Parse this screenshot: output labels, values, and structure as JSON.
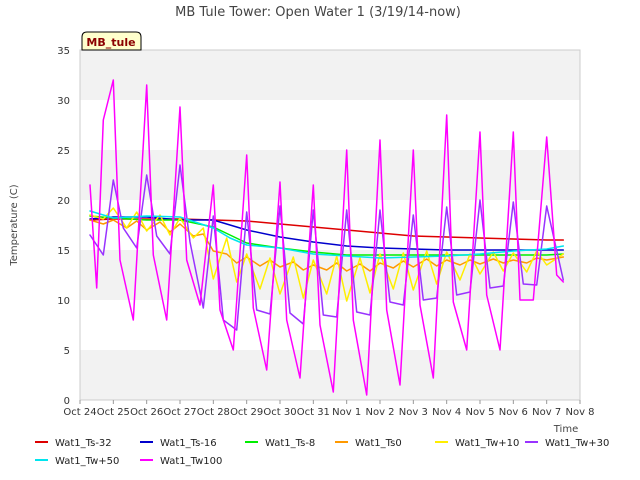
{
  "chart_data": {
    "type": "line",
    "title": "MB Tule Tower: Open Water 1 (3/19/14-now)",
    "site_tag": "MB_tule",
    "xlabel": "Time",
    "ylabel": "Temperature (C)",
    "ylim": [
      0,
      35
    ],
    "yticks": [
      "0",
      "5",
      "10",
      "15",
      "20",
      "25",
      "30",
      "35"
    ],
    "xlim": [
      0,
      15
    ],
    "xticks": [
      "Oct 24",
      "Oct 25",
      "Oct 26",
      "Oct 27",
      "Oct 28",
      "Oct 29",
      "Oct 30",
      "Oct 31",
      "Nov 1",
      "Nov 2",
      "Nov 3",
      "Nov 4",
      "Nov 5",
      "Nov 6",
      "Nov 7",
      "Nov 8"
    ],
    "grid": "horizontal bands",
    "legend_position": "bottom",
    "series": [
      {
        "name": "Wat1_Ts-32",
        "color": "#dd0000",
        "x": [
          0.3,
          1,
          2,
          3,
          4,
          5,
          6,
          7,
          8,
          9,
          10,
          11,
          12,
          13,
          14,
          14.5
        ],
        "y": [
          18.0,
          18.1,
          18.1,
          18.1,
          18.0,
          17.9,
          17.6,
          17.3,
          17.0,
          16.7,
          16.4,
          16.3,
          16.2,
          16.1,
          16.0,
          16.0
        ]
      },
      {
        "name": "Wat1_Ts-16",
        "color": "#0000cc",
        "x": [
          0.3,
          1,
          2,
          3,
          4,
          5,
          6,
          7,
          8,
          9,
          10,
          11,
          12,
          13,
          14,
          14.5
        ],
        "y": [
          18.1,
          18.3,
          18.3,
          18.0,
          18.0,
          17.0,
          16.3,
          15.8,
          15.4,
          15.2,
          15.1,
          15.0,
          15.0,
          15.0,
          15.0,
          15.0
        ]
      },
      {
        "name": "Wat1_Ts-8",
        "color": "#00ee00",
        "x": [
          0.3,
          1,
          2,
          3,
          4,
          4.5,
          5,
          6,
          7,
          8,
          9,
          10,
          11,
          12,
          13,
          14,
          14.5
        ],
        "y": [
          18.4,
          18.2,
          18.0,
          18.0,
          17.3,
          16.5,
          15.7,
          15.2,
          14.8,
          14.5,
          14.5,
          14.5,
          14.5,
          14.5,
          14.5,
          14.5,
          14.6
        ]
      },
      {
        "name": "Wat1_Ts0",
        "color": "#ff9900",
        "x": [
          0.3,
          0.7,
          1,
          1.4,
          1.7,
          2,
          2.4,
          2.7,
          3,
          3.4,
          3.7,
          4,
          4.4,
          4.7,
          5,
          5.4,
          5.7,
          6,
          6.4,
          6.7,
          7,
          7.4,
          7.7,
          8,
          8.4,
          8.7,
          9,
          9.4,
          9.7,
          10,
          10.4,
          10.7,
          11,
          11.4,
          11.7,
          12,
          12.4,
          12.7,
          13,
          13.4,
          13.7,
          14,
          14.5
        ],
        "y": [
          18.0,
          17.6,
          18.0,
          17.2,
          17.9,
          17.0,
          17.8,
          16.8,
          17.6,
          16.4,
          16.6,
          14.9,
          14.6,
          13.7,
          14.3,
          13.4,
          14.0,
          13.3,
          13.8,
          13.0,
          13.5,
          13.0,
          13.7,
          12.9,
          13.6,
          12.9,
          13.7,
          13.2,
          13.9,
          13.3,
          14.1,
          13.4,
          14.0,
          13.5,
          14.0,
          13.6,
          14.1,
          13.7,
          14.0,
          13.7,
          14.2,
          14.0,
          14.3
        ]
      },
      {
        "name": "Wat1_Tw+10",
        "color": "#ffee00",
        "x": [
          0.3,
          0.7,
          1,
          1.4,
          1.7,
          2,
          2.4,
          2.7,
          3,
          3.4,
          3.7,
          4,
          4.4,
          4.7,
          5,
          5.4,
          5.7,
          6,
          6.4,
          6.7,
          7,
          7.4,
          7.7,
          8,
          8.4,
          8.7,
          9,
          9.4,
          9.7,
          10,
          10.4,
          10.7,
          11,
          11.4,
          11.7,
          12,
          12.4,
          12.7,
          13,
          13.4,
          13.7,
          14,
          14.5
        ],
        "y": [
          18.5,
          18.1,
          19.2,
          17.2,
          18.8,
          16.9,
          18.5,
          16.5,
          18.2,
          16.2,
          17.2,
          12.1,
          16.2,
          11.8,
          14.6,
          11.1,
          14.2,
          10.6,
          14.3,
          10.2,
          14.0,
          10.6,
          14.4,
          9.9,
          14.2,
          10.7,
          14.6,
          11.1,
          14.7,
          11.0,
          14.9,
          11.6,
          14.8,
          12.0,
          14.6,
          12.6,
          14.8,
          12.9,
          14.7,
          12.8,
          14.9,
          13.5,
          14.6
        ]
      },
      {
        "name": "Wat1_Tw+30",
        "color": "#9933ff",
        "x": [
          0.3,
          0.7,
          1,
          1.3,
          1.7,
          2,
          2.3,
          2.7,
          3,
          3.3,
          3.7,
          4,
          4.3,
          4.7,
          5,
          5.3,
          5.7,
          6,
          6.3,
          6.7,
          7,
          7.3,
          7.7,
          8,
          8.3,
          8.7,
          9,
          9.3,
          9.7,
          10,
          10.3,
          10.7,
          11,
          11.3,
          11.7,
          12,
          12.3,
          12.7,
          13,
          13.3,
          13.7,
          14,
          14.5
        ],
        "y": [
          16.5,
          14.5,
          22.0,
          17.2,
          15.2,
          22.5,
          16.4,
          14.6,
          23.5,
          15.8,
          9.2,
          18.4,
          8.0,
          7.0,
          18.8,
          9.0,
          8.6,
          19.4,
          8.7,
          7.6,
          19.0,
          8.5,
          8.3,
          19.0,
          8.8,
          8.5,
          19.0,
          9.8,
          9.5,
          18.5,
          10.0,
          10.2,
          19.3,
          10.5,
          10.8,
          20.0,
          11.2,
          11.4,
          19.8,
          11.6,
          11.5,
          19.4,
          12.0
        ]
      },
      {
        "name": "Wat1_Tw+50",
        "color": "#00e5ee",
        "x": [
          0.3,
          1,
          2,
          3,
          4,
          4.5,
          5,
          6,
          7,
          8,
          9,
          10,
          11,
          12,
          13,
          14,
          14.5
        ],
        "y": [
          18.9,
          18.2,
          18.4,
          18.3,
          17.2,
          16.2,
          15.5,
          15.2,
          14.6,
          14.4,
          14.2,
          14.3,
          14.4,
          14.6,
          14.9,
          15.1,
          15.4
        ]
      },
      {
        "name": "Wat1_Tw100",
        "color": "#ff00ff",
        "x": [
          0.3,
          0.5,
          0.7,
          1.0,
          1.2,
          1.6,
          2.0,
          2.2,
          2.6,
          3.0,
          3.2,
          3.6,
          4.0,
          4.2,
          4.6,
          5.0,
          5.2,
          5.6,
          6.0,
          6.2,
          6.6,
          7.0,
          7.2,
          7.6,
          8.0,
          8.2,
          8.6,
          9.0,
          9.2,
          9.6,
          10.0,
          10.2,
          10.6,
          11.0,
          11.2,
          11.6,
          12.0,
          12.2,
          12.6,
          13.0,
          13.2,
          13.6,
          14.0,
          14.3,
          14.5
        ],
        "y": [
          21.5,
          11.2,
          28.0,
          32.0,
          14.0,
          8.0,
          31.5,
          14.5,
          8.0,
          29.3,
          14.0,
          9.5,
          21.5,
          9.0,
          5.0,
          24.5,
          9.2,
          3.0,
          21.8,
          8.0,
          2.2,
          21.5,
          7.5,
          0.8,
          25.0,
          8.0,
          0.5,
          26.0,
          9.0,
          1.5,
          25.0,
          9.5,
          2.2,
          28.5,
          9.8,
          5.0,
          26.8,
          10.5,
          5.0,
          26.8,
          10.0,
          10.0,
          26.3,
          12.5,
          11.8
        ]
      }
    ]
  }
}
